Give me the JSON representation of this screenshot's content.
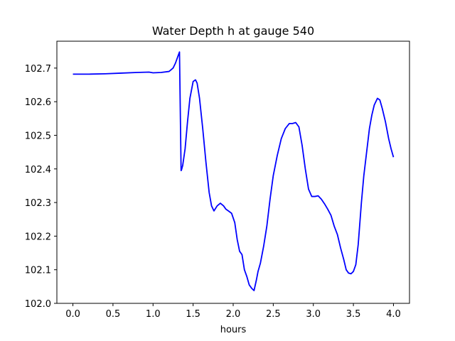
{
  "chart_data": {
    "type": "line",
    "title": "Water Depth h at gauge 540",
    "xlabel": "hours",
    "ylabel": "",
    "xlim": [
      -0.2,
      4.2
    ],
    "ylim": [
      102.0,
      102.78
    ],
    "xticks": [
      0.0,
      0.5,
      1.0,
      1.5,
      2.0,
      2.5,
      3.0,
      3.5,
      4.0
    ],
    "xtick_labels": [
      "0.0",
      "0.5",
      "1.0",
      "1.5",
      "2.0",
      "2.5",
      "3.0",
      "3.5",
      "4.0"
    ],
    "yticks": [
      102.0,
      102.1,
      102.2,
      102.3,
      102.4,
      102.5,
      102.6,
      102.7
    ],
    "ytick_labels": [
      "102.0",
      "102.1",
      "102.2",
      "102.3",
      "102.4",
      "102.5",
      "102.6",
      "102.7"
    ],
    "grid": false,
    "line_color": "#0000ff",
    "series": [
      {
        "name": "",
        "x": [
          0.0,
          0.2,
          0.4,
          0.6,
          0.8,
          0.95,
          1.0,
          1.1,
          1.2,
          1.25,
          1.28,
          1.31,
          1.33,
          1.35,
          1.355,
          1.37,
          1.4,
          1.43,
          1.46,
          1.5,
          1.53,
          1.55,
          1.58,
          1.62,
          1.66,
          1.7,
          1.73,
          1.76,
          1.8,
          1.84,
          1.88,
          1.91,
          1.94,
          1.98,
          2.02,
          2.05,
          2.08,
          2.11,
          2.14,
          2.17,
          2.2,
          2.23,
          2.26,
          2.29,
          2.31,
          2.34,
          2.38,
          2.42,
          2.46,
          2.5,
          2.55,
          2.6,
          2.65,
          2.7,
          2.74,
          2.78,
          2.82,
          2.86,
          2.9,
          2.94,
          2.98,
          3.02,
          3.06,
          3.1,
          3.14,
          3.18,
          3.22,
          3.26,
          3.3,
          3.34,
          3.38,
          3.41,
          3.44,
          3.47,
          3.5,
          3.53,
          3.56,
          3.6,
          3.63,
          3.66,
          3.7,
          3.73,
          3.76,
          3.8,
          3.83,
          3.86,
          3.9,
          3.94,
          3.97,
          4.0
        ],
        "y": [
          102.682,
          102.682,
          102.683,
          102.685,
          102.687,
          102.688,
          102.686,
          102.687,
          102.69,
          102.7,
          102.715,
          102.735,
          102.748,
          102.395,
          102.397,
          102.41,
          102.46,
          102.54,
          102.61,
          102.66,
          102.665,
          102.655,
          102.61,
          102.52,
          102.42,
          102.33,
          102.29,
          102.275,
          102.29,
          102.298,
          102.29,
          102.28,
          102.275,
          102.268,
          102.24,
          102.19,
          102.155,
          102.145,
          102.1,
          102.08,
          102.055,
          102.045,
          102.038,
          102.07,
          102.095,
          102.12,
          102.17,
          102.23,
          102.31,
          102.38,
          102.44,
          102.49,
          102.52,
          102.535,
          102.535,
          102.538,
          102.525,
          102.47,
          102.4,
          102.34,
          102.318,
          102.318,
          102.32,
          102.31,
          102.296,
          102.28,
          102.262,
          102.23,
          102.205,
          102.165,
          102.13,
          102.1,
          102.09,
          102.088,
          102.095,
          102.115,
          102.175,
          102.3,
          102.38,
          102.44,
          102.52,
          102.56,
          102.59,
          102.61,
          102.605,
          102.58,
          102.54,
          102.49,
          102.46,
          102.435
        ]
      }
    ]
  }
}
